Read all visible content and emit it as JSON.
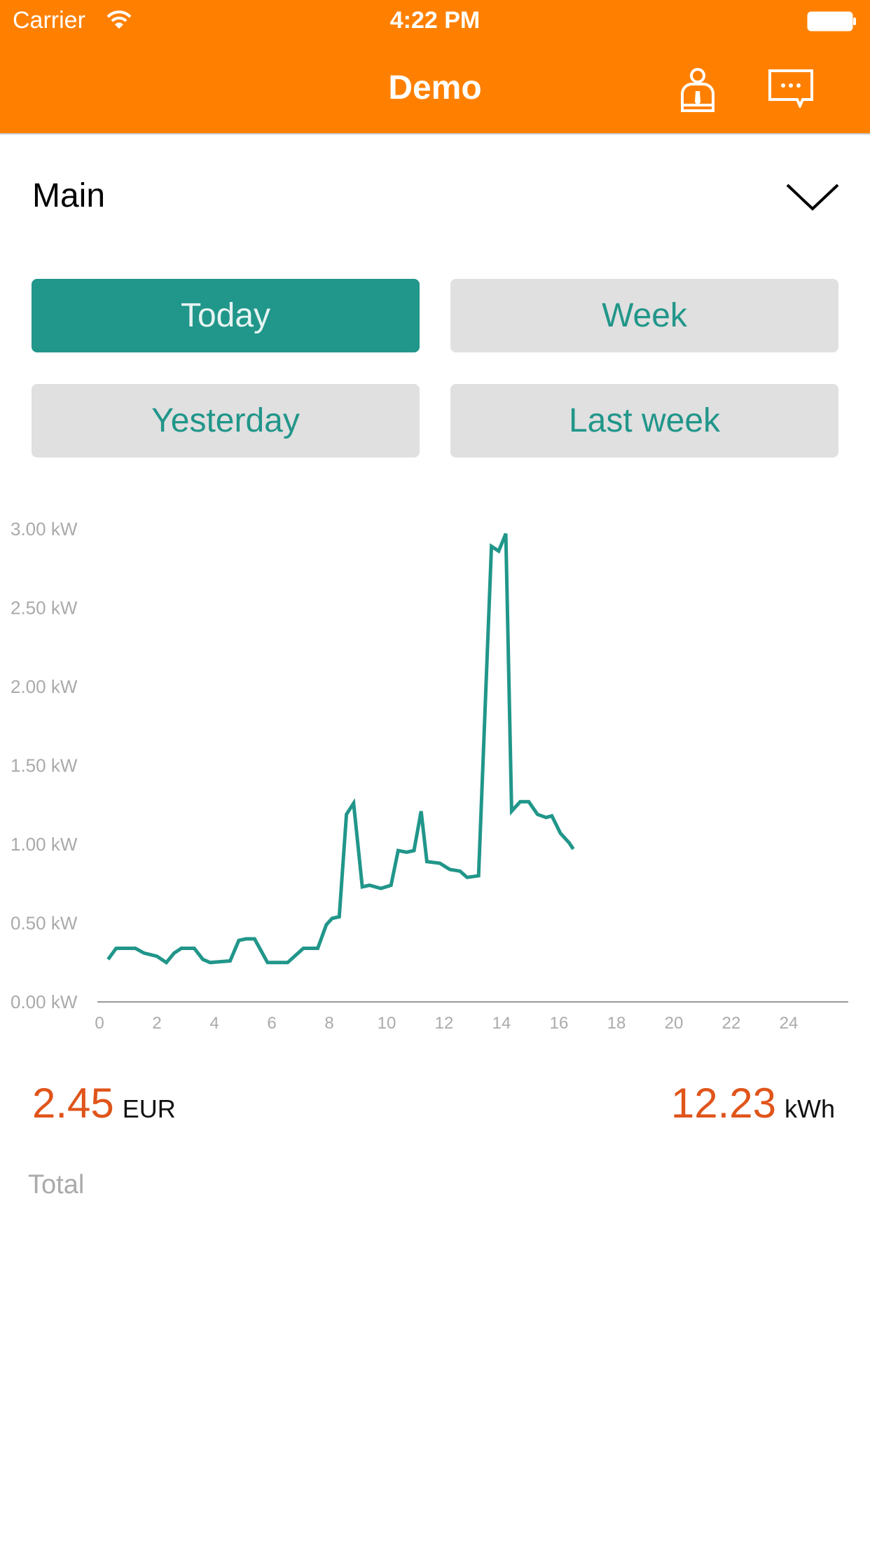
{
  "status_bar": {
    "carrier": "Carrier",
    "time": "4:22 PM",
    "battery_level": 1.0
  },
  "nav": {
    "title": "Demo",
    "icons": [
      "user-icon",
      "chat-icon"
    ]
  },
  "meter_select": {
    "value": "Main"
  },
  "periods": [
    {
      "label": "Today",
      "active": true
    },
    {
      "label": "Week",
      "active": false
    },
    {
      "label": "Yesterday",
      "active": false
    },
    {
      "label": "Last week",
      "active": false
    }
  ],
  "colors": {
    "brand": "#FF8000",
    "accent": "#21968A",
    "value": "#E0541A"
  },
  "chart_data": {
    "type": "line",
    "xlim": [
      0,
      24
    ],
    "ylim": [
      0,
      3
    ],
    "x_ticks": [
      "0",
      "2",
      "4",
      "6",
      "8",
      "10",
      "12",
      "14",
      "16",
      "18",
      "20",
      "22",
      "24"
    ],
    "y_ticks": [
      "0.00 kW",
      "0.50 kW",
      "1.00 kW",
      "1.50 kW",
      "2.00 kW",
      "2.50 kW",
      "3.00 kW"
    ],
    "grid": false,
    "x": [
      0.3,
      0.58,
      1.0,
      1.25,
      1.55,
      2.0,
      2.33,
      2.6,
      2.85,
      3.3,
      3.6,
      3.85,
      4.55,
      4.85,
      5.1,
      5.4,
      5.85,
      6.55,
      7.1,
      7.6,
      7.9,
      8.1,
      8.35,
      8.6,
      8.85,
      9.15,
      9.4,
      9.8,
      10.15,
      10.4,
      10.7,
      10.95,
      11.2,
      11.4,
      11.85,
      12.2,
      12.55,
      12.8,
      13.2,
      13.65,
      13.9,
      14.15,
      14.35,
      14.65,
      14.95,
      15.25,
      15.55,
      15.75,
      16.05,
      16.35,
      16.5
    ],
    "y": [
      0.27,
      0.34,
      0.34,
      0.34,
      0.31,
      0.29,
      0.25,
      0.31,
      0.34,
      0.34,
      0.27,
      0.25,
      0.26,
      0.39,
      0.4,
      0.4,
      0.25,
      0.25,
      0.34,
      0.34,
      0.49,
      0.53,
      0.54,
      1.19,
      1.26,
      0.73,
      0.74,
      0.72,
      0.74,
      0.96,
      0.95,
      0.96,
      1.21,
      0.89,
      0.88,
      0.84,
      0.83,
      0.79,
      0.8,
      2.89,
      2.86,
      2.97,
      1.21,
      1.27,
      1.27,
      1.19,
      1.17,
      1.18,
      1.07,
      1.01,
      0.97
    ]
  },
  "summary": {
    "cost": "2.45",
    "cost_unit": "EUR",
    "energy": "12.23",
    "energy_unit": "kWh",
    "label": "Total"
  }
}
